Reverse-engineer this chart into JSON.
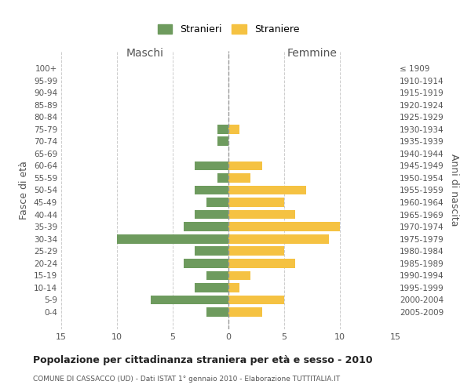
{
  "age_groups": [
    "100+",
    "95-99",
    "90-94",
    "85-89",
    "80-84",
    "75-79",
    "70-74",
    "65-69",
    "60-64",
    "55-59",
    "50-54",
    "45-49",
    "40-44",
    "35-39",
    "30-34",
    "25-29",
    "20-24",
    "15-19",
    "10-14",
    "5-9",
    "0-4"
  ],
  "birth_years": [
    "≤ 1909",
    "1910-1914",
    "1915-1919",
    "1920-1924",
    "1925-1929",
    "1930-1934",
    "1935-1939",
    "1940-1944",
    "1945-1949",
    "1950-1954",
    "1955-1959",
    "1960-1964",
    "1965-1969",
    "1970-1974",
    "1975-1979",
    "1980-1984",
    "1985-1989",
    "1990-1994",
    "1995-1999",
    "2000-2004",
    "2005-2009"
  ],
  "maschi": [
    0,
    0,
    0,
    0,
    0,
    1,
    1,
    0,
    3,
    1,
    3,
    2,
    3,
    4,
    10,
    3,
    4,
    2,
    3,
    7,
    2
  ],
  "femmine": [
    0,
    0,
    0,
    0,
    0,
    1,
    0,
    0,
    3,
    2,
    7,
    5,
    6,
    10,
    9,
    5,
    6,
    2,
    1,
    5,
    3
  ],
  "maschi_color": "#6e9b5e",
  "femmine_color": "#f5c242",
  "title": "Popolazione per cittadinanza straniera per età e sesso - 2010",
  "subtitle": "COMUNE DI CASSACCO (UD) - Dati ISTAT 1° gennaio 2010 - Elaborazione TUTTITALIA.IT",
  "xlabel_left": "Maschi",
  "xlabel_right": "Femmine",
  "ylabel_left": "Fasce di età",
  "ylabel_right": "Anni di nascita",
  "legend_stranieri": "Stranieri",
  "legend_straniere": "Straniere",
  "xlim": 15,
  "background_color": "#ffffff",
  "grid_color": "#cccccc",
  "bar_height": 0.75
}
